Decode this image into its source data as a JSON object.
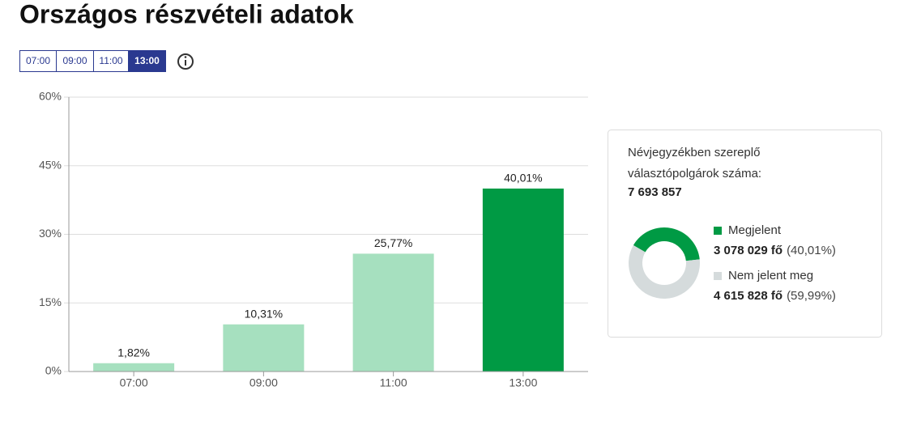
{
  "header": {
    "title": "Országos részvételi adatok"
  },
  "buttons": [
    "07:00",
    "09:00",
    "11:00",
    "13:00"
  ],
  "active_button": 3,
  "chart_data": [
    {
      "type": "bar",
      "categories": [
        "07:00",
        "09:00",
        "11:00",
        "13:00"
      ],
      "values": [
        1.82,
        10.31,
        25.77,
        40.01
      ],
      "value_labels": [
        "1,82%",
        "10,31%",
        "25,77%",
        "40,01%"
      ],
      "colors": [
        "#a6e0bf",
        "#a6e0bf",
        "#a6e0bf",
        "#009a44"
      ],
      "ylim": [
        0,
        60
      ],
      "yticks": [
        {
          "value": 0,
          "label": "0%"
        },
        {
          "value": 15,
          "label": "15%"
        },
        {
          "value": 30,
          "label": "30%"
        },
        {
          "value": 45,
          "label": "45%"
        },
        {
          "value": 60,
          "label": "60%"
        }
      ],
      "grid": true
    },
    {
      "type": "pie",
      "title": "Névjegyzékben szereplő választópolgárok száma:",
      "total": "7 693 857",
      "categories": [
        "Megjelent",
        "Nem jelent meg"
      ],
      "values": [
        40.01,
        59.99
      ],
      "value_labels": [
        "(40,01%)",
        "(59,99%)"
      ],
      "count_labels": [
        "3 078 029 fő",
        "4 615 828 fő"
      ],
      "colors": [
        "#009a44",
        "#d5dbdc"
      ]
    }
  ]
}
